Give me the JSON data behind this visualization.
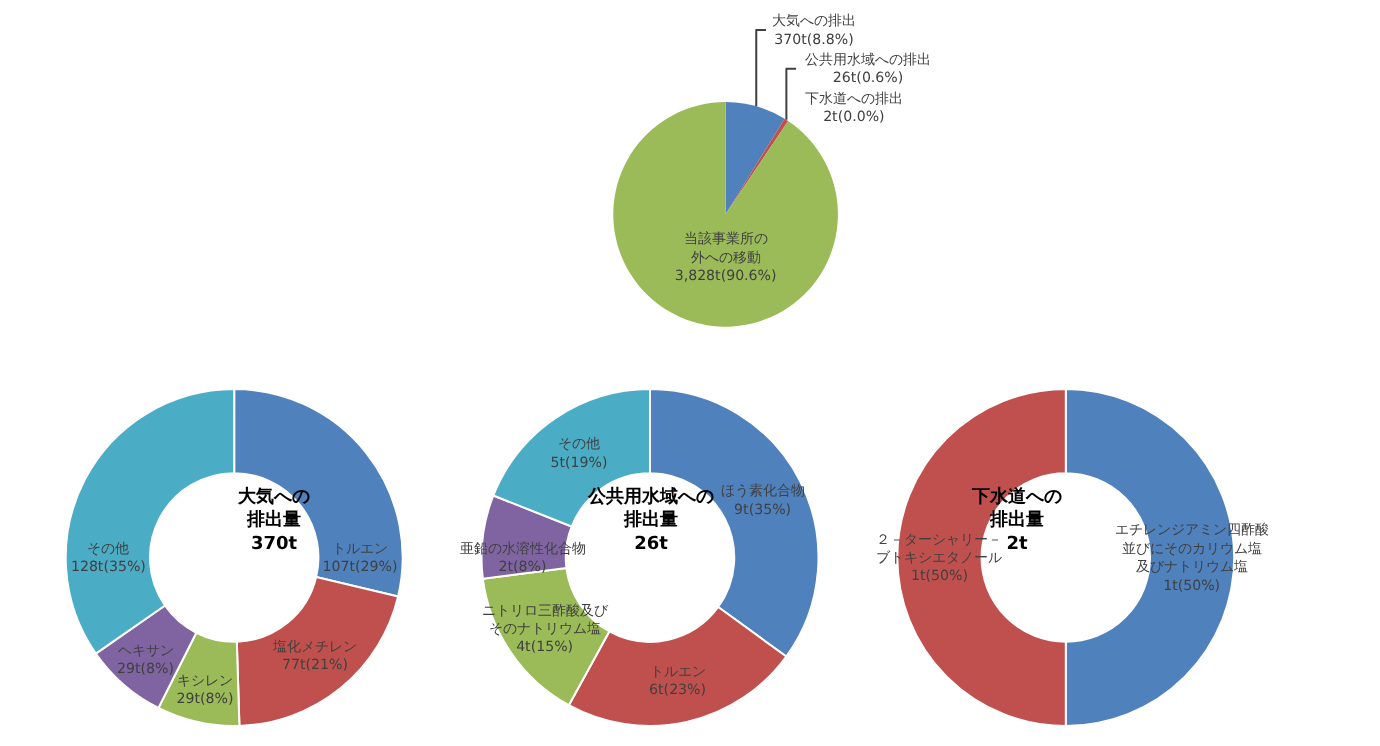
{
  "chart_data": [
    {
      "type": "pie",
      "categories": [
        "大気への排出",
        "公共用水域への排出",
        "下水道への排出",
        "当該事業所の外への移動"
      ],
      "values": [
        8.8,
        0.6,
        0.0,
        90.6
      ],
      "value_labels": [
        "370t(8.8%)",
        "26t(0.6%)",
        "2t(0.0%)",
        "3,828t(90.6%)"
      ],
      "colors": [
        "#4f81bd",
        "#c0504d",
        "#b3661c",
        "#9bbb59"
      ]
    },
    {
      "type": "donut",
      "title": "大気への排出量",
      "subtitle": "370t",
      "categories": [
        "トルエン",
        "塩化メチレン",
        "キシレン",
        "ヘキサン",
        "その他"
      ],
      "values": [
        29,
        21,
        8,
        8,
        35
      ],
      "value_labels": [
        "107t(29%)",
        "77t(21%)",
        "29t(8%)",
        "29t(8%)",
        "128t(35%)"
      ],
      "colors": [
        "#4f81bd",
        "#c0504d",
        "#9bbb59",
        "#8064a2",
        "#4bacc6"
      ]
    },
    {
      "type": "donut",
      "title": "公共用水域への排出量",
      "subtitle": "26t",
      "categories": [
        "ほう素化合物",
        "トルエン",
        "ニトリロ三酢酸及びそのナトリウム塩",
        "亜鉛の水溶性化合物",
        "その他"
      ],
      "values": [
        35,
        23,
        15,
        8,
        19
      ],
      "value_labels": [
        "9t(35%)",
        "6t(23%)",
        "4t(15%)",
        "2t(8%)",
        "5t(19%)"
      ],
      "colors": [
        "#4f81bd",
        "#c0504d",
        "#9bbb59",
        "#8064a2",
        "#4bacc6"
      ]
    },
    {
      "type": "donut",
      "title": "下水道への排出量",
      "subtitle": "2t",
      "categories": [
        "エチレンジアミン四酢酸並びにそのカリウム塩及びナトリウム塩",
        "２－ターシャリー－ブトキシエタノール"
      ],
      "values": [
        50,
        50
      ],
      "value_labels": [
        "1t(50%)",
        "1t(50%)"
      ],
      "colors": [
        "#4f81bd",
        "#c0504d"
      ]
    }
  ]
}
